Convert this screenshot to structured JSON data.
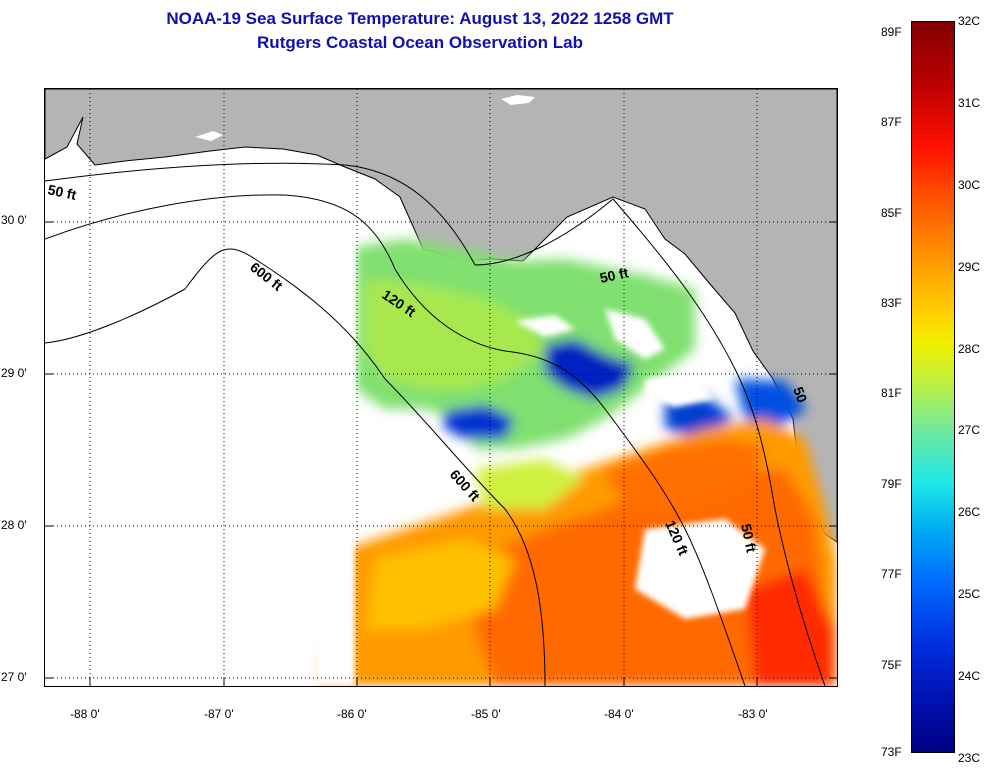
{
  "title": {
    "line1": "NOAA-19 Sea Surface Temperature:  August 13, 2022 1258 GMT",
    "line2": "Rutgers Coastal Ocean Observation Lab"
  },
  "map": {
    "lat_labels": [
      "30 0'",
      "29 0'",
      "28 0'",
      "27 0'"
    ],
    "lon_labels": [
      "-88 0'",
      "-87 0'",
      "-86 0'",
      "-85 0'",
      "-84 0'",
      "-83 0'"
    ],
    "contour_labels": {
      "fifty_west": "50 ft",
      "fifty_east": "50 ft",
      "fifty_south": "50 ft",
      "six_hundred_north": "600 ft",
      "six_hundred_south": "600 ft",
      "one_twenty_north": "120 ft",
      "one_twenty_south": "120 ft",
      "coastal_mark": "50"
    }
  },
  "colorbar": {
    "fahrenheit": [
      "89F",
      "87F",
      "85F",
      "83F",
      "81F",
      "79F",
      "77F",
      "75F",
      "73F"
    ],
    "celsius": [
      "32C",
      "31C",
      "30C",
      "29C",
      "28C",
      "27C",
      "26C",
      "25C",
      "24C",
      "23C"
    ]
  },
  "colors": {
    "land": "#b4b4b4",
    "title": "#1010b0",
    "cloud": "#ffffff"
  }
}
